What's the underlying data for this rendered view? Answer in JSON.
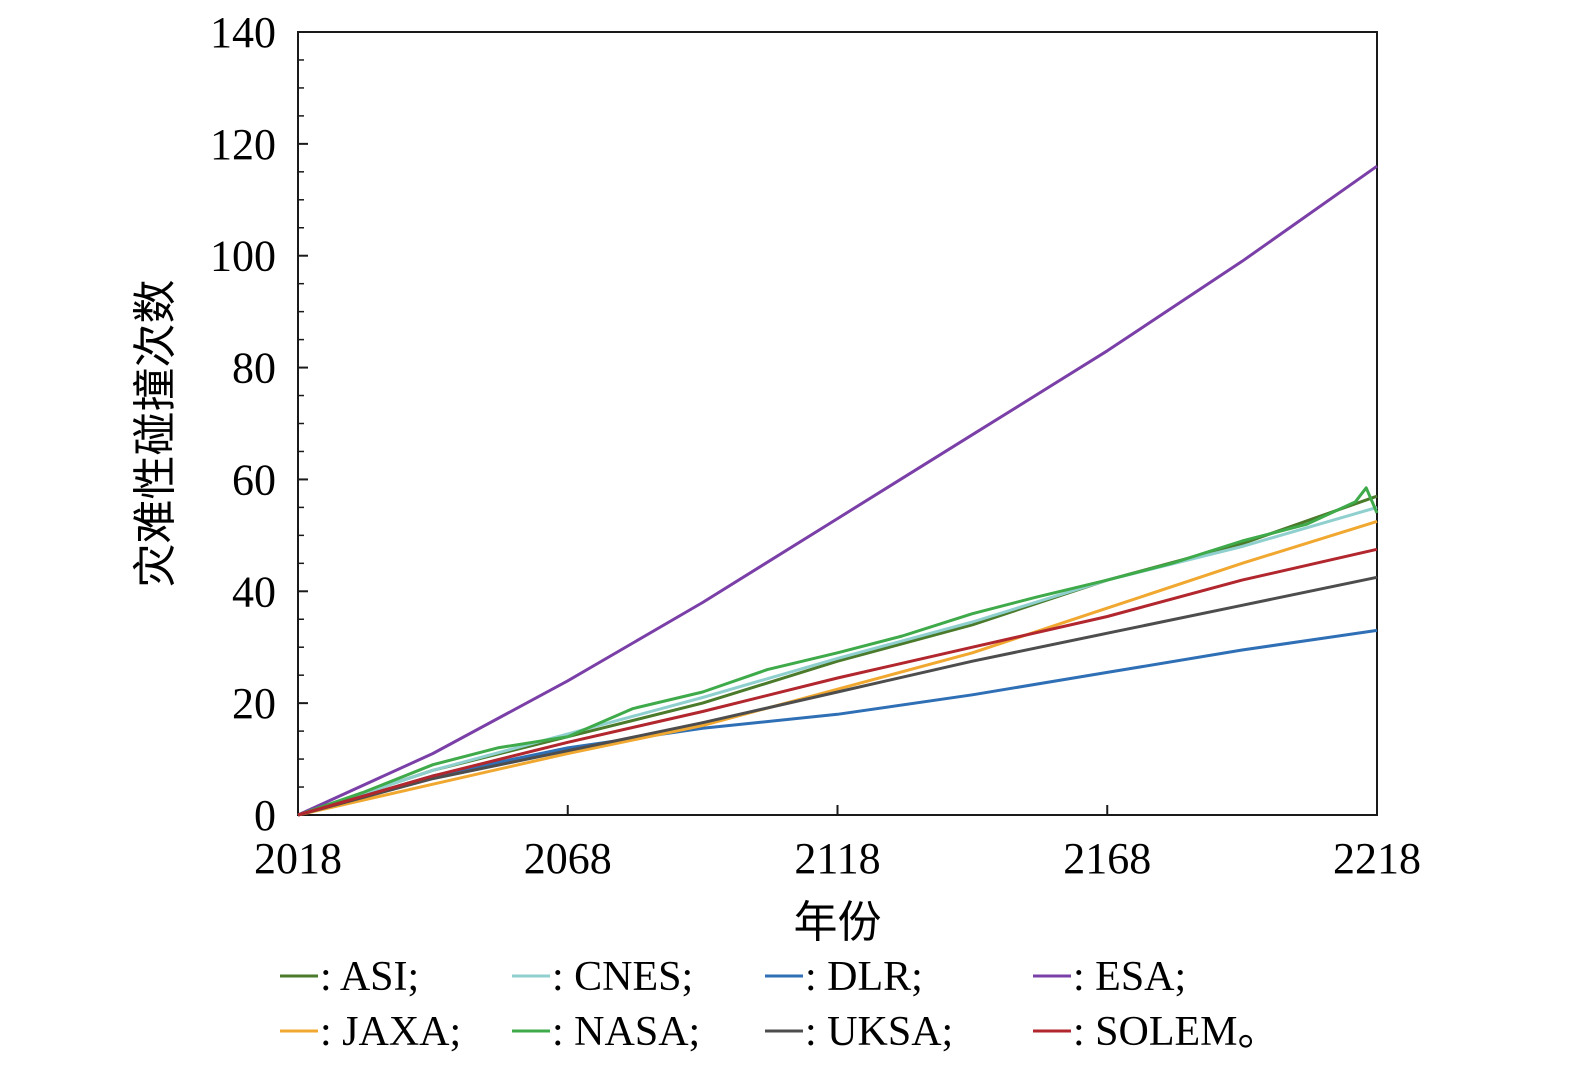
{
  "chart_data": {
    "type": "line",
    "xlabel": "年份",
    "ylabel": "灾难性碰撞次数",
    "xlim": [
      2018,
      2218
    ],
    "ylim": [
      0,
      140
    ],
    "xticks": [
      2018,
      2068,
      2118,
      2168,
      2218
    ],
    "yticks": [
      0,
      20,
      40,
      60,
      80,
      100,
      120,
      140
    ],
    "grid": false,
    "legend_position": "bottom",
    "series": [
      {
        "name": ": ASI;",
        "color": "#4a7a2a",
        "x": [
          2018,
          2043,
          2068,
          2093,
          2118,
          2143,
          2168,
          2193,
          2218
        ],
        "y": [
          0,
          8,
          14,
          20,
          27.5,
          34,
          42,
          48.5,
          57
        ]
      },
      {
        "name": ": CNES;",
        "color": "#8fd0cf",
        "x": [
          2018,
          2043,
          2068,
          2093,
          2118,
          2143,
          2168,
          2193,
          2218
        ],
        "y": [
          0,
          8,
          14.5,
          21,
          28,
          34.5,
          42,
          48,
          55
        ]
      },
      {
        "name": ": DLR;",
        "color": "#2f6fb5",
        "x": [
          2018,
          2043,
          2068,
          2093,
          2118,
          2143,
          2168,
          2193,
          2218
        ],
        "y": [
          0,
          7,
          12,
          15.5,
          18,
          21.5,
          25.5,
          29.5,
          33
        ]
      },
      {
        "name": ": ESA;",
        "color": "#7b3fa8",
        "x": [
          2018,
          2043,
          2068,
          2093,
          2118,
          2143,
          2168,
          2193,
          2218
        ],
        "y": [
          0,
          11,
          24,
          38,
          53,
          68,
          83,
          99,
          116
        ]
      },
      {
        "name": ": JAXA;",
        "color": "#f0a830",
        "x": [
          2018,
          2043,
          2068,
          2093,
          2118,
          2143,
          2168,
          2193,
          2218
        ],
        "y": [
          0,
          5.5,
          11,
          16,
          22.5,
          29,
          37,
          45,
          52.5
        ]
      },
      {
        "name": ": NASA;",
        "color": "#3faa4a",
        "x": [
          2018,
          2030,
          2043,
          2055,
          2068,
          2080,
          2093,
          2105,
          2118,
          2130,
          2143,
          2155,
          2168,
          2180,
          2193,
          2205,
          2214,
          2216,
          2218
        ],
        "y": [
          0,
          4,
          9,
          12,
          14,
          19,
          22,
          26,
          29,
          32,
          36,
          39,
          42,
          45,
          49,
          52,
          56,
          58.5,
          54
        ]
      },
      {
        "name": ": UKSA;",
        "color": "#4d4d4d",
        "x": [
          2018,
          2043,
          2068,
          2093,
          2118,
          2143,
          2168,
          2193,
          2218
        ],
        "y": [
          0,
          6.5,
          11.5,
          16.5,
          22,
          27.5,
          32.5,
          37.5,
          42.5
        ]
      },
      {
        "name": ": SOLEM。",
        "color": "#b2262e",
        "x": [
          2018,
          2043,
          2068,
          2093,
          2118,
          2143,
          2168,
          2193,
          2218
        ],
        "y": [
          0,
          7,
          13,
          18.5,
          24.5,
          30,
          35.5,
          42,
          47.5
        ]
      }
    ]
  }
}
